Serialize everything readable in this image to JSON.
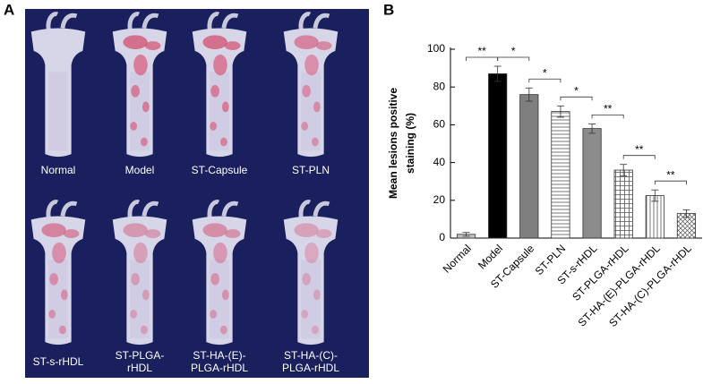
{
  "panel_a": {
    "label": "A",
    "labels": [
      [
        "Normal"
      ],
      [
        "Model"
      ],
      [
        "ST-Capsule"
      ],
      [
        "ST-PLN"
      ],
      [
        "ST-s-rHDL"
      ],
      [
        "ST-PLGA-",
        "rHDL"
      ],
      [
        "ST-HA-(E)-",
        "PLGA-rHDL"
      ],
      [
        "ST-HA-(C)-",
        "PLGA-rHDL"
      ]
    ]
  },
  "panel_b": {
    "label": "B"
  },
  "chart_data": {
    "type": "bar",
    "ylabel": [
      "Mean lesions positive",
      "staining (%)"
    ],
    "categories": [
      "Normal",
      "Model",
      "ST-Capsule",
      "ST-PLN",
      "ST-s-rHDL",
      "ST-PLGA-rHDL",
      "ST-HA-(E)-PLGA-rHDL",
      "ST-HA-(C)-PLGA-rHDL"
    ],
    "values": [
      2,
      87,
      76,
      67,
      58,
      36,
      22.5,
      13
    ],
    "errors": [
      1,
      4,
      3.5,
      3,
      2.5,
      3,
      3,
      2
    ],
    "colors": [
      "#c0c0c0",
      "#000000",
      "#7f7f7f",
      "#ffffff",
      "#8c8c8c",
      "#ffffff",
      "#ffffff",
      "#ffffff"
    ],
    "patterns": [
      "solid",
      "solid",
      "solid",
      "hlines",
      "solid",
      "grid",
      "vlines",
      "cross"
    ],
    "ylim": [
      0,
      100
    ],
    "yticks": [
      0,
      20,
      40,
      60,
      80,
      100
    ],
    "significance": [
      {
        "pair": [
          0,
          1
        ],
        "label": "**"
      },
      {
        "pair": [
          1,
          2
        ],
        "label": "*"
      },
      {
        "pair": [
          2,
          3
        ],
        "label": "*"
      },
      {
        "pair": [
          3,
          4
        ],
        "label": "*"
      },
      {
        "pair": [
          4,
          5
        ],
        "label": "**"
      },
      {
        "pair": [
          5,
          6
        ],
        "label": "**"
      },
      {
        "pair": [
          6,
          7
        ],
        "label": "**"
      }
    ]
  }
}
